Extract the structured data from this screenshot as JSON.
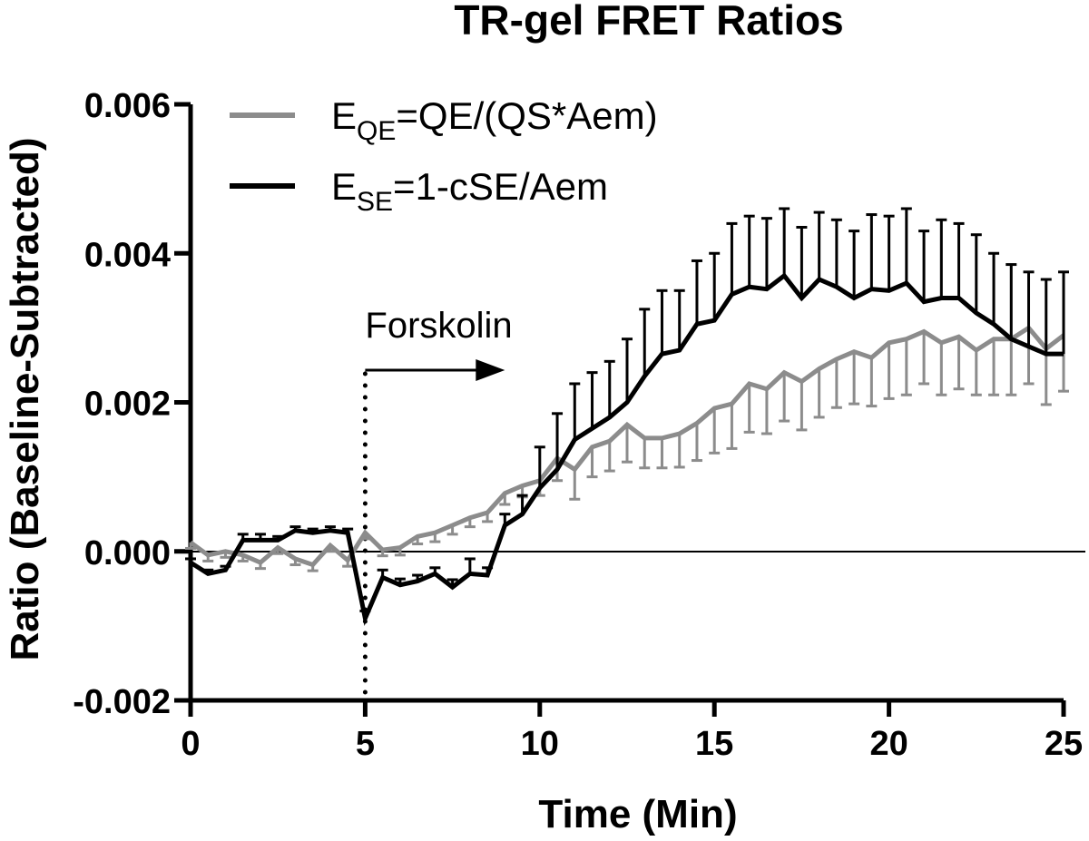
{
  "chart_data": {
    "type": "line",
    "title": "TR-gel FRET Ratios",
    "xlabel": "Time (Min)",
    "ylabel": "Ratio (Baseline-Subtracted)",
    "xlim": [
      0,
      25
    ],
    "ylim": [
      -0.002,
      0.006
    ],
    "xticks": [
      0,
      5,
      10,
      15,
      20,
      25
    ],
    "xtick_labels": [
      "0",
      "5",
      "10",
      "15",
      "20",
      "25"
    ],
    "yticks": [
      -0.002,
      0.0,
      0.002,
      0.004,
      0.006
    ],
    "ytick_labels": [
      "-0.002",
      "0.000",
      "0.002",
      "0.004",
      "0.006"
    ],
    "grid": false,
    "zero_line": true,
    "legend_position": "top-left",
    "x": [
      0,
      0.5,
      1,
      1.5,
      2,
      2.5,
      3,
      3.5,
      4,
      4.5,
      5,
      5.5,
      6,
      6.5,
      7,
      7.5,
      8,
      8.5,
      9,
      9.5,
      10,
      10.5,
      11,
      11.5,
      12,
      12.5,
      13,
      13.5,
      14,
      14.5,
      15,
      15.5,
      16,
      16.5,
      17,
      17.5,
      18,
      18.5,
      19,
      19.5,
      20,
      20.5,
      21,
      21.5,
      22,
      22.5,
      23,
      23.5,
      24,
      24.5,
      25
    ],
    "series": [
      {
        "name": "EQE=QE/(QS*Aem)",
        "legend_main": "E",
        "legend_sub": "QE",
        "legend_rest": "=QE/(QS*Aem)",
        "color": "#8c8c8c",
        "error_direction": "down",
        "values": [
          0.00012,
          -5e-05,
          0.0,
          -5e-05,
          -0.00015,
          5e-05,
          -0.0001,
          -0.00018,
          8e-05,
          -0.00012,
          0.00025,
          2e-05,
          5e-05,
          0.0002,
          0.00025,
          0.00035,
          0.00045,
          0.00052,
          0.00078,
          0.00088,
          0.00095,
          0.00125,
          0.0011,
          0.0014,
          0.00148,
          0.0017,
          0.00152,
          0.00152,
          0.00158,
          0.00172,
          0.00192,
          0.00198,
          0.00225,
          0.00218,
          0.0024,
          0.00228,
          0.00245,
          0.00258,
          0.00268,
          0.0026,
          0.0028,
          0.00285,
          0.00295,
          0.0028,
          0.00288,
          0.0027,
          0.00285,
          0.00285,
          0.003,
          0.00272,
          0.0029
        ],
        "errors": [
          8e-05,
          8e-05,
          8e-05,
          8e-05,
          8e-05,
          8e-05,
          8e-05,
          8e-05,
          8e-05,
          8e-05,
          8e-05,
          8e-05,
          0.0001,
          0.0001,
          0.00012,
          0.00012,
          0.00012,
          0.00012,
          0.00015,
          0.00015,
          0.0002,
          0.0003,
          0.0004,
          0.0004,
          0.0004,
          0.0005,
          0.0004,
          0.0004,
          0.00045,
          0.0005,
          0.0006,
          0.0006,
          0.00065,
          0.0006,
          0.00065,
          0.00065,
          0.00065,
          0.00065,
          0.0007,
          0.00065,
          0.00075,
          0.00075,
          0.0007,
          0.0007,
          0.0007,
          0.0006,
          0.00075,
          0.00075,
          0.00075,
          0.00075,
          0.00075
        ]
      },
      {
        "name": "ESE=1-cSE/Aem",
        "legend_main": "E",
        "legend_sub": "SE",
        "legend_rest": "=1-cSE/Aem",
        "color": "#000000",
        "error_direction": "up",
        "values": [
          -0.00015,
          -0.0003,
          -0.00025,
          0.00015,
          0.00015,
          0.00015,
          0.00028,
          0.00025,
          0.00028,
          0.00025,
          -0.0009,
          -0.00035,
          -0.00045,
          -0.0004,
          -0.0003,
          -0.00048,
          -0.0003,
          -0.00032,
          0.00035,
          0.0005,
          0.00085,
          0.0011,
          0.0015,
          0.00165,
          0.0018,
          0.002,
          0.00235,
          0.00265,
          0.0027,
          0.00305,
          0.0031,
          0.00345,
          0.00355,
          0.00352,
          0.0037,
          0.0034,
          0.00365,
          0.00355,
          0.0034,
          0.00352,
          0.0035,
          0.0036,
          0.00335,
          0.0034,
          0.0034,
          0.0032,
          0.00305,
          0.00285,
          0.00275,
          0.00265,
          0.00265
        ],
        "errors": [
          5e-05,
          5e-05,
          5e-05,
          8e-05,
          8e-05,
          5e-05,
          5e-05,
          5e-05,
          5e-05,
          5e-05,
          0.0001,
          0.0001,
          8e-05,
          8e-05,
          8e-05,
          0.0001,
          0.0002,
          0.0001,
          0.00015,
          0.00025,
          0.00055,
          0.00075,
          0.00075,
          0.00075,
          0.00075,
          0.00085,
          0.0009,
          0.00085,
          0.0008,
          0.00085,
          0.0009,
          0.00095,
          0.00095,
          0.00095,
          0.0009,
          0.00095,
          0.0009,
          0.0009,
          0.0009,
          0.001,
          0.001,
          0.001,
          0.00095,
          0.00105,
          0.001,
          0.00105,
          0.00095,
          0.001,
          0.001,
          0.001,
          0.0011
        ]
      }
    ],
    "annotations": [
      {
        "text": "Forskolin",
        "x": 5,
        "arrow_to_x": 9
      }
    ]
  }
}
